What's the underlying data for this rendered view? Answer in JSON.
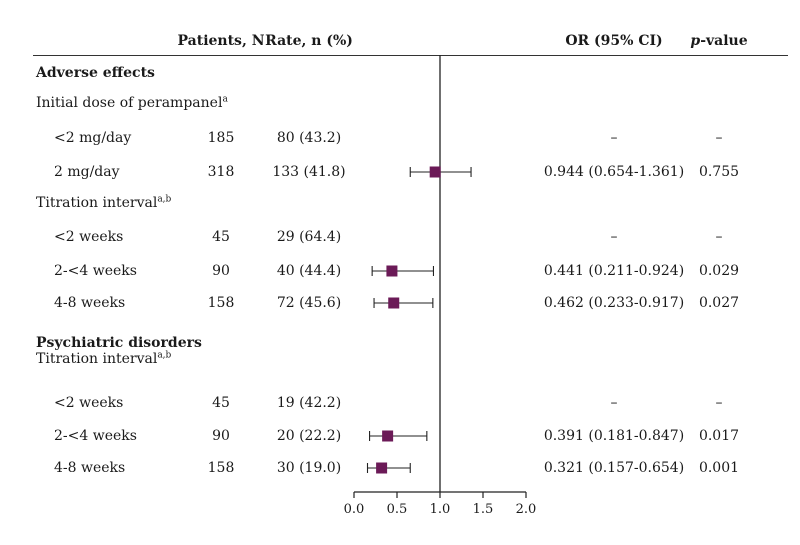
{
  "header": {
    "patients": "Patients, N",
    "rate": "Rate, n (%)",
    "or": "OR (95% CI)",
    "p_italic": "p",
    "p_rest": "-value"
  },
  "rows": [
    {
      "kind": "heading",
      "label": "Adverse effects",
      "bold": true
    },
    {
      "kind": "subheading",
      "label": "Initial dose of perampanel",
      "sup": "a"
    },
    {
      "kind": "data",
      "label": "<2 mg/day",
      "n": "185",
      "rate": "80 (43.2)",
      "or": "–",
      "p": "–"
    },
    {
      "kind": "data",
      "label": "2 mg/day",
      "n": "318",
      "rate": "133 (41.8)",
      "or": "0.944 (0.654-1.361)",
      "p": "0.755"
    },
    {
      "kind": "subheading",
      "label": "Titration interval",
      "sup": "a,b"
    },
    {
      "kind": "data",
      "label": "<2 weeks",
      "n": "45",
      "rate": "29 (64.4)",
      "or": "–",
      "p": "–"
    },
    {
      "kind": "data",
      "label": "2-<4 weeks",
      "n": "90",
      "rate": "40 (44.4)",
      "or": "0.441 (0.211-0.924)",
      "p": "0.029"
    },
    {
      "kind": "data",
      "label": "4-8 weeks",
      "n": "158",
      "rate": "72 (45.6)",
      "or": "0.462 (0.233-0.917)",
      "p": "0.027"
    },
    {
      "kind": "heading",
      "label": "Psychiatric disorders",
      "bold": true
    },
    {
      "kind": "subheading",
      "label": "Titration interval",
      "sup": "a,b"
    },
    {
      "kind": "data",
      "label": "<2 weeks",
      "n": "45",
      "rate": "19 (42.2)",
      "or": "–",
      "p": "–"
    },
    {
      "kind": "data",
      "label": "2-<4 weeks",
      "n": "90",
      "rate": "20 (22.2)",
      "or": "0.391 (0.181-0.847)",
      "p": "0.017"
    },
    {
      "kind": "data",
      "label": "4-8 weeks",
      "n": "158",
      "rate": "30 (19.0)",
      "or": "0.321 (0.157-0.654)",
      "p": "0.001"
    }
  ],
  "chart_data": {
    "type": "scatter",
    "xlim": [
      0.0,
      2.0
    ],
    "x_ticks": [
      "0.0",
      "0.5",
      "1.0",
      "1.5",
      "2.0"
    ],
    "reference_line": 1.0,
    "marker_color": "#6b1a57",
    "points": [
      {
        "label": "2 mg/day",
        "or": 0.944,
        "lo": 0.654,
        "hi": 1.361
      },
      {
        "label": "2-<4 weeks",
        "or": 0.441,
        "lo": 0.211,
        "hi": 0.924
      },
      {
        "label": "4-8 weeks",
        "or": 0.462,
        "lo": 0.233,
        "hi": 0.917
      },
      {
        "label": "2-<4 weeks",
        "or": 0.391,
        "lo": 0.181,
        "hi": 0.847
      },
      {
        "label": "4-8 weeks",
        "or": 0.321,
        "lo": 0.157,
        "hi": 0.654
      }
    ]
  }
}
